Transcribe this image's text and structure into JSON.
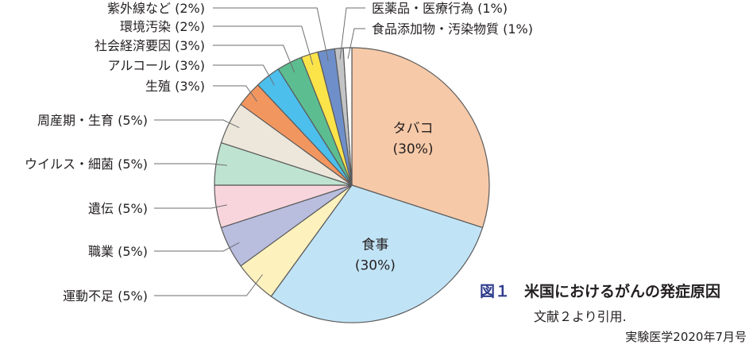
{
  "chart_data": {
    "type": "pie",
    "title": "米国におけるがんの発症原因",
    "unit": "%",
    "slices": [
      {
        "label": "タバコ",
        "display": "タバコ\n(30%)",
        "value": 30,
        "color": "#f6c9a8",
        "label_inside": true
      },
      {
        "label": "食事",
        "display": "食事\n(30%)",
        "value": 30,
        "color": "#c1e3f6",
        "label_inside": true
      },
      {
        "label": "運動不足",
        "display": "運動不足 (5%)",
        "value": 5,
        "color": "#fdf1bd"
      },
      {
        "label": "職業",
        "display": "職業 (5%)",
        "value": 5,
        "color": "#b9bedf"
      },
      {
        "label": "遺伝",
        "display": "遺伝 (5%)",
        "value": 5,
        "color": "#f8d5dc"
      },
      {
        "label": "ウイルス・細菌",
        "display": "ウイルス・細菌 (5%)",
        "value": 5,
        "color": "#bfe3d1"
      },
      {
        "label": "周産期・生育",
        "display": "周産期・生育 (5%)",
        "value": 5,
        "color": "#ece7da"
      },
      {
        "label": "生殖",
        "display": "生殖 (3%)",
        "value": 3,
        "color": "#f29660"
      },
      {
        "label": "アルコール",
        "display": "アルコール (3%)",
        "value": 3,
        "color": "#4cbfec"
      },
      {
        "label": "社会経済要因",
        "display": "社会経済要因 (3%)",
        "value": 3,
        "color": "#5cbd91"
      },
      {
        "label": "環境汚染",
        "display": "環境汚染 (2%)",
        "value": 2,
        "color": "#fbe34a"
      },
      {
        "label": "紫外線など",
        "display": "紫外線など (2%)",
        "value": 2,
        "color": "#6e8fca"
      },
      {
        "label": "医薬品・医療行為",
        "display": "医薬品・医療行為 (1%)",
        "value": 1,
        "color": "#c2c4c6"
      },
      {
        "label": "食品添加物・汚染物質",
        "display": "食品添加物・汚染物質 (1%)",
        "value": 1,
        "color": "#ffffff"
      }
    ]
  },
  "caption": {
    "figure_number": "図１",
    "title": "米国におけるがんの発症原因",
    "citation": "文献２より引用.",
    "source": "実験医学2020年7月号"
  },
  "colors": {
    "leader_line": "#6d6e71",
    "slice_border": "#5a5a5a",
    "figure_number": "#2e3b8c"
  }
}
